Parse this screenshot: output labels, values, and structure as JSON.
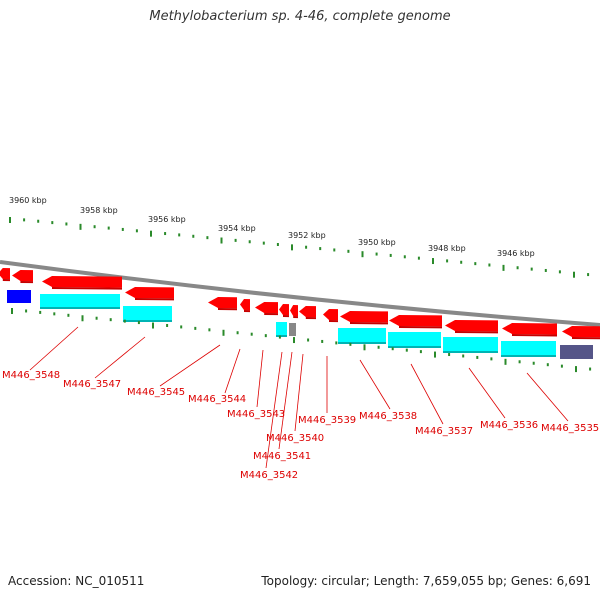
{
  "title": "Methylobacterium sp. 4-46, complete genome",
  "footer": {
    "accession": "Accession: NC_010511",
    "summary": "Topology: circular; Length: 7,659,055 bp; Genes: 6,691"
  },
  "scale_labels": [
    "3960 kbp",
    "3958 kbp",
    "3956 kbp",
    "3954 kbp",
    "3952 kbp",
    "3950 kbp",
    "3948 kbp",
    "3946 kbp"
  ],
  "genes": [
    {
      "id": "M446_3548",
      "label": "M446_3548"
    },
    {
      "id": "M446_3547",
      "label": "M446_3547"
    },
    {
      "id": "M446_3545",
      "label": "M446_3545"
    },
    {
      "id": "M446_3544",
      "label": "M446_3544"
    },
    {
      "id": "M446_3543",
      "label": "M446_3543"
    },
    {
      "id": "M446_3542",
      "label": "M446_3542"
    },
    {
      "id": "M446_3541",
      "label": "M446_3541"
    },
    {
      "id": "M446_3540",
      "label": "M446_3540"
    },
    {
      "id": "M446_3539",
      "label": "M446_3539"
    },
    {
      "id": "M446_3538",
      "label": "M446_3538"
    },
    {
      "id": "M446_3537",
      "label": "M446_3537"
    },
    {
      "id": "M446_3536",
      "label": "M446_3536"
    },
    {
      "id": "M446_3535",
      "label": "M446_3535"
    }
  ],
  "colors": {
    "cds": "#ff0000",
    "cds_shadow": "#c80000",
    "feature": "#00ffff",
    "feature_shadow": "#00b4b4",
    "backbone": "#888888",
    "tick": "#2a8a2a",
    "label": "#dd0000",
    "blue_feature": "#0000ff",
    "grey_feature": "#888888",
    "slate_feature": "#555588"
  }
}
